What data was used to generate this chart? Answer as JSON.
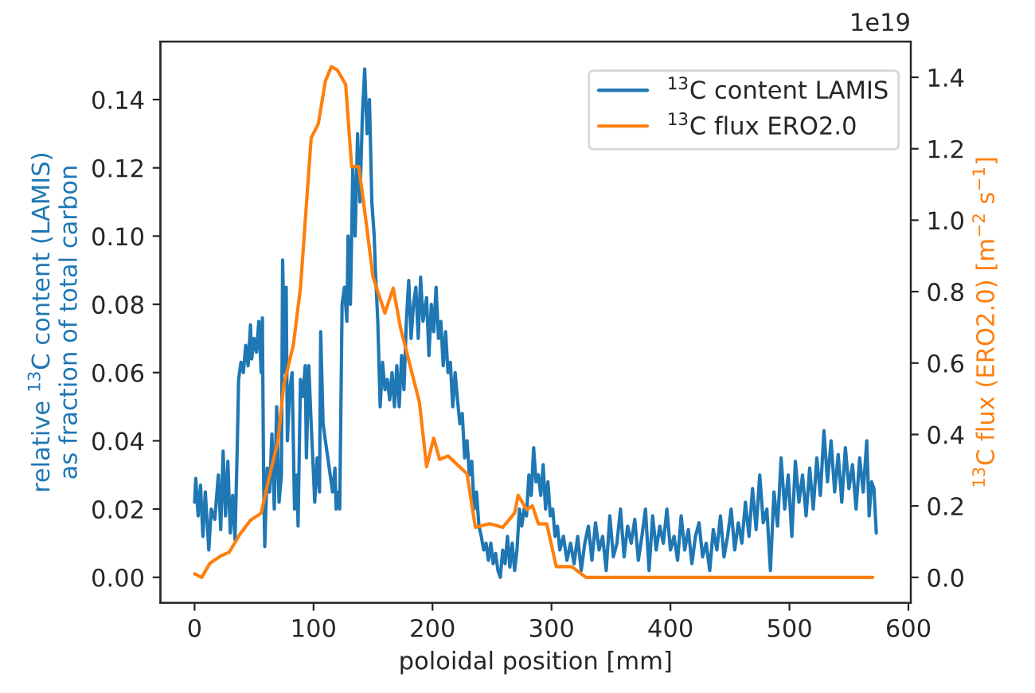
{
  "chart_data": {
    "type": "line",
    "xlabel": "poloidal position [mm]",
    "ylabel": "relative $^{13}$C content (LAMIS)\nas fraction of total carbon",
    "y2label": "$^{13}$C flux (ERO2.0) [m$^{−2}$ s$^{−1}$]",
    "xlim": [
      -28.7,
      602
    ],
    "xticks": [
      0,
      100,
      200,
      300,
      400,
      500,
      600
    ],
    "ylim": [
      -0.0075,
      0.157
    ],
    "yticks": [
      {
        "value": 0,
        "label": "0.00"
      },
      {
        "value": 0.02,
        "label": "0.02"
      },
      {
        "value": 0.04,
        "label": "0.04"
      },
      {
        "value": 0.06,
        "label": "0.06"
      },
      {
        "value": 0.08,
        "label": "0.08"
      },
      {
        "value": 0.1,
        "label": "0.10"
      },
      {
        "value": 0.12,
        "label": "0.12"
      },
      {
        "value": 0.14,
        "label": "0.14"
      }
    ],
    "y2lim": [
      -0.0715,
      1.5
    ],
    "y2ticks": [
      {
        "value": 0,
        "label": "0.0"
      },
      0.2,
      0.4,
      0.6,
      0.8,
      {
        "value": 1,
        "label": "1.0"
      },
      1.2,
      1.4
    ],
    "annotations": [
      "1e19"
    ],
    "legend": "top right",
    "grid": false,
    "series": [
      {
        "name": "$^{13}$C content LAMIS",
        "color": "#1f77b4",
        "x": [
          0,
          1,
          3,
          5,
          7,
          9,
          12,
          14,
          17,
          20,
          22,
          24,
          26,
          28,
          30,
          32,
          34,
          36,
          37,
          39,
          41,
          43,
          45,
          47,
          48,
          50,
          52,
          54,
          56,
          57,
          58,
          59,
          61,
          63,
          65,
          67,
          69,
          71,
          73,
          74,
          76,
          77,
          78,
          80,
          82,
          84,
          86,
          87,
          89,
          91,
          93,
          94,
          96,
          98,
          100,
          101,
          103,
          105,
          106,
          108,
          110,
          112,
          114,
          116,
          118,
          119,
          121,
          122,
          124,
          126,
          128,
          129,
          131,
          133,
          135,
          137,
          139,
          141,
          143,
          145,
          147,
          149,
          151,
          152,
          154,
          156,
          158,
          160,
          162,
          164,
          166,
          168,
          170,
          172,
          174,
          176,
          178,
          180,
          182,
          184,
          186,
          188,
          190,
          192,
          195,
          197,
          199,
          201,
          203,
          205,
          207,
          209,
          211,
          213,
          215,
          217,
          219,
          221,
          223,
          225,
          227,
          229,
          231,
          233,
          235,
          237,
          239,
          241,
          243,
          245,
          247,
          249,
          251,
          253,
          255,
          257,
          259,
          261,
          263,
          265,
          267,
          269,
          271,
          273,
          275,
          277,
          279,
          281,
          283,
          285,
          287,
          289,
          291,
          293,
          295,
          297,
          299,
          301,
          303,
          305,
          307,
          310,
          313,
          316,
          319,
          322,
          325,
          328,
          331,
          334,
          337,
          340,
          343,
          346,
          349,
          352,
          355,
          358,
          361,
          364,
          367,
          370,
          373,
          376,
          379,
          382,
          385,
          388,
          391,
          394,
          397,
          400,
          403,
          406,
          409,
          412,
          415,
          418,
          421,
          424,
          427,
          430,
          433,
          436,
          439,
          442,
          445,
          448,
          451,
          454,
          457,
          460,
          463,
          466,
          469,
          472,
          475,
          478,
          481,
          484,
          487,
          490,
          493,
          496,
          499,
          502,
          505,
          508,
          511,
          514,
          517,
          520,
          523,
          526,
          529,
          532,
          535,
          538,
          541,
          544,
          547,
          550,
          553,
          556,
          559,
          562,
          565,
          567,
          569,
          571,
          573
        ],
        "values": [
          0.022,
          0.029,
          0.018,
          0.027,
          0.012,
          0.025,
          0.008,
          0.02,
          0.017,
          0.03,
          0.014,
          0.037,
          0.018,
          0.034,
          0.013,
          0.024,
          0.011,
          0.04,
          0.058,
          0.063,
          0.06,
          0.068,
          0.062,
          0.074,
          0.064,
          0.07,
          0.066,
          0.075,
          0.06,
          0.076,
          0.03,
          0.009,
          0.032,
          0.025,
          0.042,
          0.02,
          0.05,
          0.022,
          0.03,
          0.093,
          0.06,
          0.085,
          0.04,
          0.055,
          0.06,
          0.02,
          0.03,
          0.015,
          0.058,
          0.053,
          0.062,
          0.035,
          0.062,
          0.045,
          0.03,
          0.022,
          0.035,
          0.025,
          0.072,
          0.045,
          0.04,
          0.035,
          0.03,
          0.025,
          0.032,
          0.02,
          0.025,
          0.02,
          0.08,
          0.085,
          0.075,
          0.1,
          0.08,
          0.12,
          0.1,
          0.13,
          0.11,
          0.135,
          0.149,
          0.13,
          0.14,
          0.11,
          0.1,
          0.09,
          0.075,
          0.05,
          0.063,
          0.055,
          0.058,
          0.052,
          0.06,
          0.05,
          0.062,
          0.05,
          0.065,
          0.055,
          0.075,
          0.087,
          0.07,
          0.08,
          0.085,
          0.07,
          0.088,
          0.075,
          0.082,
          0.065,
          0.08,
          0.072,
          0.085,
          0.07,
          0.075,
          0.062,
          0.072,
          0.06,
          0.063,
          0.05,
          0.06,
          0.052,
          0.045,
          0.048,
          0.035,
          0.04,
          0.03,
          0.034,
          0.02,
          0.025,
          0.015,
          0.012,
          0.008,
          0.01,
          0.005,
          0.01,
          0.004,
          0.007,
          0.002,
          0.0,
          0.008,
          0.004,
          0.012,
          0.003,
          0.01,
          0.002,
          0.008,
          0.02,
          0.015,
          0.02,
          0.018,
          0.03,
          0.024,
          0.038,
          0.028,
          0.03,
          0.024,
          0.033,
          0.02,
          0.028,
          0.018,
          0.02,
          0.012,
          0.015,
          0.008,
          0.012,
          0.005,
          0.01,
          0.004,
          0.012,
          0.002,
          0.01,
          0.015,
          0.005,
          0.016,
          0.008,
          0.012,
          0.002,
          0.018,
          0.006,
          0.01,
          0.02,
          0.006,
          0.015,
          0.01,
          0.017,
          0.005,
          0.012,
          0.02,
          0.002,
          0.018,
          0.008,
          0.015,
          0.01,
          0.02,
          0.008,
          0.012,
          0.005,
          0.018,
          0.008,
          0.014,
          0.004,
          0.012,
          0.016,
          0.006,
          0.01,
          0.002,
          0.014,
          0.008,
          0.018,
          0.006,
          0.012,
          0.02,
          0.008,
          0.016,
          0.01,
          0.022,
          0.012,
          0.026,
          0.014,
          0.03,
          0.016,
          0.02,
          0.002,
          0.025,
          0.015,
          0.035,
          0.02,
          0.03,
          0.012,
          0.034,
          0.022,
          0.03,
          0.018,
          0.032,
          0.02,
          0.035,
          0.024,
          0.043,
          0.028,
          0.04,
          0.025,
          0.036,
          0.022,
          0.038,
          0.026,
          0.033,
          0.02,
          0.035,
          0.025,
          0.04,
          0.018,
          0.028,
          0.026,
          0.013
        ]
      },
      {
        "name": "$^{13}$C flux ERO2.0",
        "color": "#ff7f0e",
        "axis": "y2",
        "x": [
          0,
          6,
          13,
          22,
          29,
          38,
          47,
          56,
          62,
          70,
          75,
          83,
          89,
          98,
          104,
          110,
          115,
          120,
          127,
          132,
          138,
          144,
          150,
          160,
          167,
          173,
          189,
          195,
          201,
          206,
          213,
          229,
          236,
          248,
          259,
          269,
          272,
          279,
          284,
          289,
          296,
          304,
          317,
          329,
          349,
          365,
          570
        ],
        "values": [
          0.01,
          0.0,
          0.04,
          0.06,
          0.07,
          0.12,
          0.16,
          0.18,
          0.27,
          0.38,
          0.54,
          0.65,
          0.81,
          1.23,
          1.27,
          1.39,
          1.43,
          1.42,
          1.38,
          1.15,
          1.15,
          1.0,
          0.84,
          0.74,
          0.81,
          0.7,
          0.49,
          0.31,
          0.39,
          0.33,
          0.34,
          0.29,
          0.14,
          0.15,
          0.14,
          0.18,
          0.23,
          0.19,
          0.2,
          0.15,
          0.15,
          0.03,
          0.03,
          0.0,
          0.0,
          0.0,
          0.0
        ]
      }
    ]
  }
}
